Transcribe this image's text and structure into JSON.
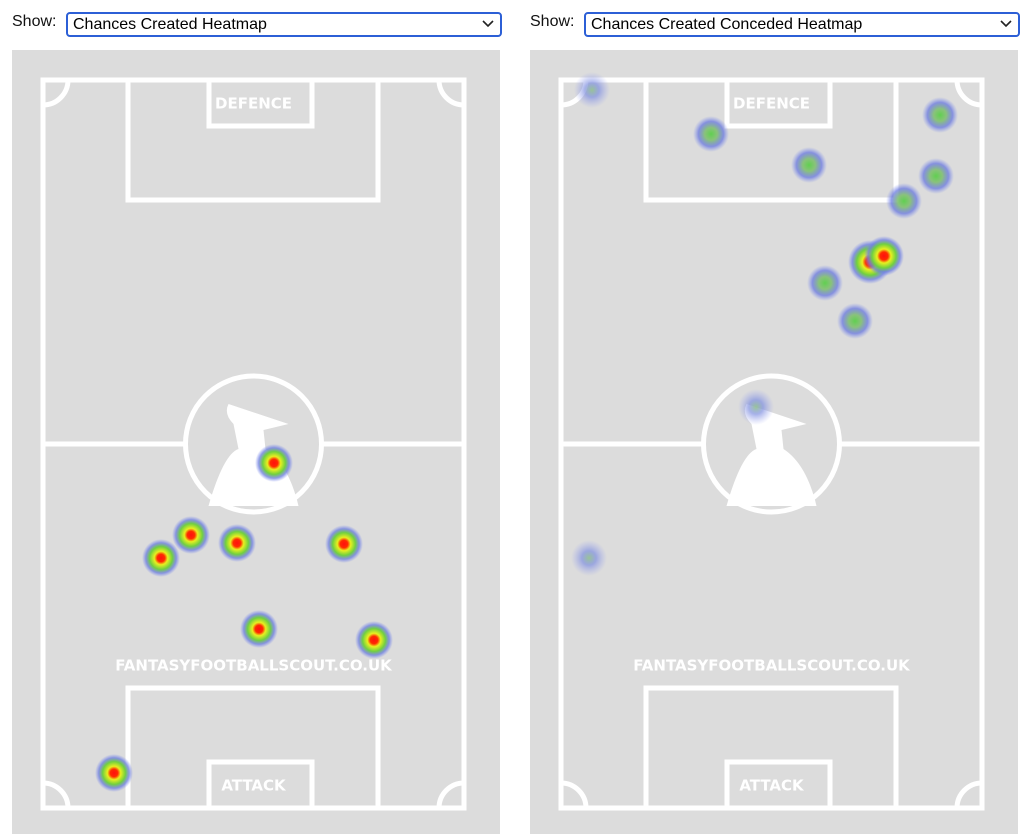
{
  "panels": [
    {
      "show_label": "Show:",
      "selected": "Chances Created Heatmap",
      "pitch": {
        "top_label": "DEFENCE",
        "bottom_label": "ATTACK",
        "watermark": "FANTASYFOOTBALLSCOUT.CO.UK"
      }
    },
    {
      "show_label": "Show:",
      "selected": "Chances Created Conceded Heatmap",
      "pitch": {
        "top_label": "DEFENCE",
        "bottom_label": "ATTACK",
        "watermark": "FANTASYFOOTBALLSCOUT.CO.UK"
      }
    }
  ]
}
